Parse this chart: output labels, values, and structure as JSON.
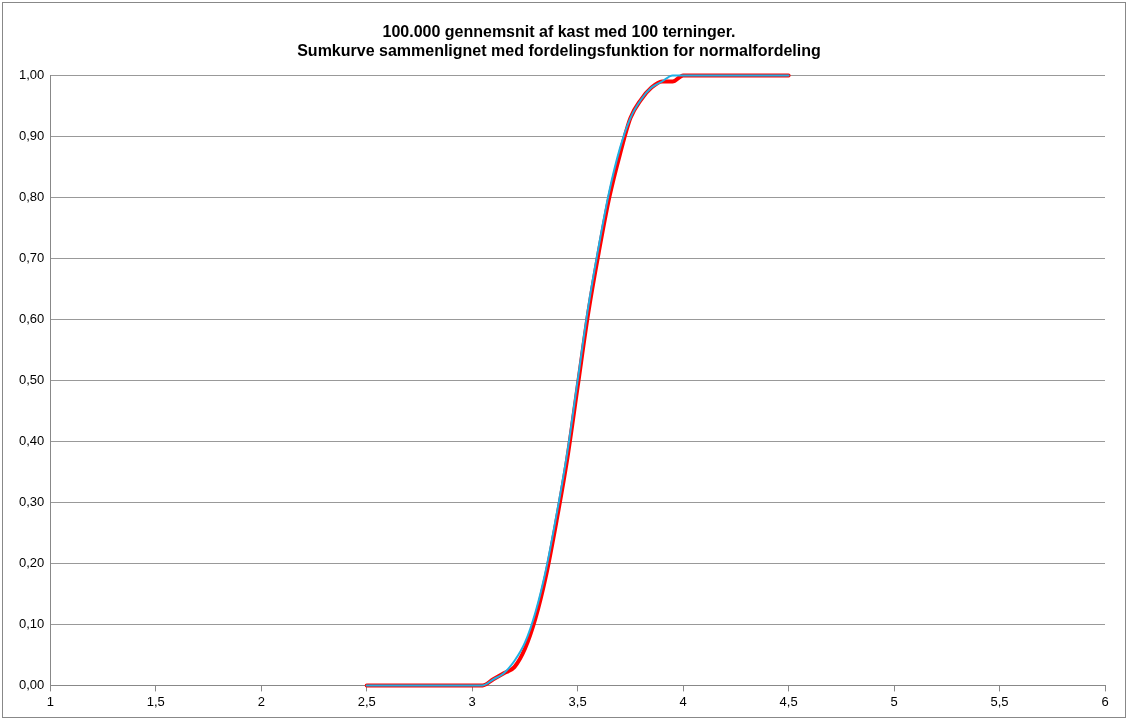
{
  "chart_data": {
    "type": "line",
    "title": "100.000 gennemsnit af kast med 100 terninger.\nSumkurve sammenlignet med fordelingsfunktion for normalfordeling",
    "x": [
      2.5,
      2.6,
      2.7,
      2.8,
      2.9,
      2.95,
      3.0,
      3.05,
      3.1,
      3.15,
      3.2,
      3.25,
      3.3,
      3.35,
      3.4,
      3.45,
      3.5,
      3.55,
      3.6,
      3.65,
      3.7,
      3.75,
      3.8,
      3.85,
      3.9,
      3.95,
      4.0,
      4.05,
      4.1,
      4.2,
      4.3,
      4.4,
      4.5
    ],
    "series": [
      {
        "color": "#ff0000",
        "values": [
          0,
          0,
          0,
          0,
          0,
          0,
          0,
          0,
          0.01,
          0.02,
          0.03,
          0.06,
          0.11,
          0.18,
          0.27,
          0.37,
          0.49,
          0.61,
          0.71,
          0.8,
          0.87,
          0.93,
          0.96,
          0.98,
          0.99,
          0.99,
          1,
          1,
          1,
          1,
          1,
          1,
          1
        ]
      },
      {
        "color": "#1fb0e4",
        "values": [
          0,
          0,
          0,
          0,
          0,
          0,
          0,
          0,
          0.01,
          0.02,
          0.04,
          0.07,
          0.12,
          0.19,
          0.28,
          0.38,
          0.5,
          0.62,
          0.72,
          0.81,
          0.88,
          0.93,
          0.96,
          0.98,
          0.99,
          1,
          1,
          1,
          1,
          1,
          1,
          1,
          1
        ]
      }
    ],
    "xlim": [
      1,
      6
    ],
    "xticks": [
      1,
      {
        "value": 1.5,
        "label": "1,5"
      },
      2,
      {
        "value": 2.5,
        "label": "2,5"
      },
      3,
      {
        "value": 3.5,
        "label": "3,5"
      },
      4,
      {
        "value": 4.5,
        "label": "4,5"
      },
      5,
      {
        "value": 5.5,
        "label": "5,5"
      },
      6
    ],
    "ylim": [
      0,
      1
    ],
    "yticks": [
      {
        "value": 0,
        "label": "0,00"
      },
      {
        "value": 0.1,
        "label": "0,10"
      },
      {
        "value": 0.2,
        "label": "0,20"
      },
      {
        "value": 0.3,
        "label": "0,30"
      },
      {
        "value": 0.4,
        "label": "0,40"
      },
      {
        "value": 0.5,
        "label": "0,50"
      },
      {
        "value": 0.6,
        "label": "0,60"
      },
      {
        "value": 0.7,
        "label": "0,70"
      },
      {
        "value": 0.8,
        "label": "0,80"
      },
      {
        "value": 0.9,
        "label": "0,90"
      },
      {
        "value": 1,
        "label": "1,00"
      }
    ],
    "grid": "y",
    "legend": false,
    "marker": "none",
    "line_style": "solid"
  }
}
